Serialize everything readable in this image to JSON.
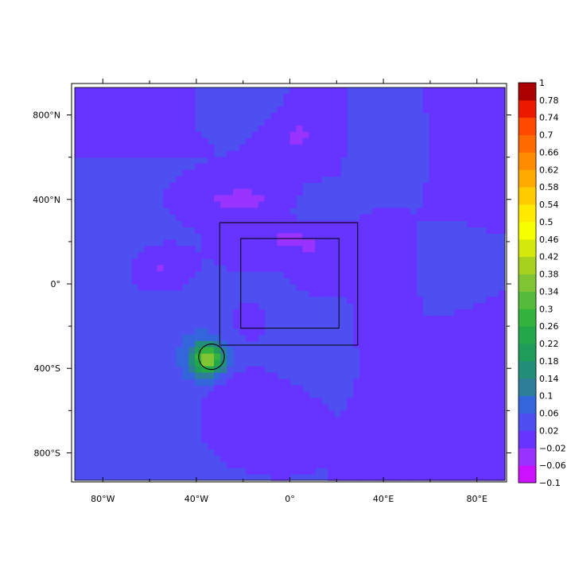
{
  "chart_data": {
    "type": "heatmap",
    "title": "",
    "xlabel": "",
    "ylabel": "",
    "xlim": [
      -92,
      92
    ],
    "ylim": [
      -930,
      930
    ],
    "x_ticks": [
      {
        "value": -80,
        "label": "80°W"
      },
      {
        "value": -40,
        "label": "40°W"
      },
      {
        "value": 0,
        "label": "0°"
      },
      {
        "value": 40,
        "label": "40°E"
      },
      {
        "value": 80,
        "label": "80°E"
      }
    ],
    "y_ticks": [
      {
        "value": 800,
        "label": "800°N"
      },
      {
        "value": 400,
        "label": "400°N"
      },
      {
        "value": 0,
        "label": "0°"
      },
      {
        "value": -400,
        "label": "400°S"
      },
      {
        "value": -800,
        "label": "800°S"
      }
    ],
    "background_value": 0.02,
    "features": [
      {
        "x": -72,
        "y": 380,
        "sx": 14,
        "sy": 150,
        "amp": 0.035
      },
      {
        "x": -73,
        "y": 770,
        "sx": 14,
        "sy": 120,
        "amp": -0.03
      },
      {
        "x": -35,
        "y": -355,
        "sx": 4.5,
        "sy": 50,
        "amp": 0.32
      },
      {
        "x": -38,
        "y": -350,
        "sx": 10,
        "sy": 140,
        "amp": 0.04
      },
      {
        "x": -20,
        "y": 400,
        "sx": 12,
        "sy": 55,
        "amp": -0.05
      },
      {
        "x": -45,
        "y": 400,
        "sx": 10,
        "sy": 60,
        "amp": -0.025
      },
      {
        "x": 0,
        "y": 210,
        "sx": 13,
        "sy": 60,
        "amp": -0.045
      },
      {
        "x": 10,
        "y": 80,
        "sx": 5,
        "sy": 70,
        "amp": -0.03
      },
      {
        "x": 3,
        "y": 700,
        "sx": 8,
        "sy": 80,
        "amp": -0.045
      },
      {
        "x": -15,
        "y": -180,
        "sx": 5,
        "sy": 55,
        "amp": -0.05
      },
      {
        "x": -25,
        "y": -550,
        "sx": 8,
        "sy": 80,
        "amp": -0.045
      },
      {
        "x": -55,
        "y": 80,
        "sx": 6,
        "sy": 60,
        "amp": -0.045
      },
      {
        "x": -5,
        "y": -170,
        "sx": 9,
        "sy": 90,
        "amp": 0.035
      },
      {
        "x": 43,
        "y": 60,
        "sx": 5,
        "sy": 130,
        "amp": -0.04
      },
      {
        "x": 45,
        "y": 620,
        "sx": 8,
        "sy": 110,
        "amp": 0.04
      },
      {
        "x": 10,
        "y": 350,
        "sx": 8,
        "sy": 60,
        "amp": 0.02
      },
      {
        "x": 80,
        "y": -600,
        "sx": 10,
        "sy": 200,
        "amp": -0.03
      },
      {
        "x": 75,
        "y": 600,
        "sx": 10,
        "sy": 150,
        "amp": -0.025
      },
      {
        "x": 70,
        "y": 100,
        "sx": 8,
        "sy": 100,
        "amp": 0.02
      },
      {
        "x": -60,
        "y": -300,
        "sx": 15,
        "sy": 150,
        "amp": 0.02
      },
      {
        "x": -20,
        "y": 820,
        "sx": 10,
        "sy": 60,
        "amp": 0.025
      }
    ],
    "contours": [
      {
        "level": 0.3,
        "shape": "ellipse",
        "cx": -33.5,
        "cy": -345,
        "rx": 5.5,
        "ry": 60,
        "rotation": -30
      }
    ],
    "boxes": [
      {
        "name": "outer",
        "x0": -30,
        "x1": 29,
        "y0": -290,
        "y1": 290
      },
      {
        "name": "inner",
        "x0": -21,
        "x1": 21,
        "y0": -210,
        "y1": 215
      }
    ],
    "colorbar": {
      "labels": [
        "1",
        "0.78",
        "0.74",
        "0.7",
        "0.66",
        "0.62",
        "0.58",
        "0.54",
        "0.5",
        "0.46",
        "0.42",
        "0.38",
        "0.34",
        "0.3",
        "0.26",
        "0.22",
        "0.18",
        "0.14",
        "0.1",
        "0.06",
        "0.02",
        "−0.02",
        "−0.06",
        "−0.1"
      ],
      "levels": [
        -0.1,
        -0.06,
        -0.02,
        0.02,
        0.06,
        0.1,
        0.14,
        0.18,
        0.22,
        0.26,
        0.3,
        0.34,
        0.38,
        0.42,
        0.46,
        0.5,
        0.54,
        0.58,
        0.62,
        0.66,
        0.7,
        0.74,
        0.78,
        1
      ],
      "colors": [
        "#cc11ff",
        "#9933ff",
        "#6633ff",
        "#4e4ff0",
        "#3366dd",
        "#2e7d99",
        "#238f7a",
        "#1f9b5a",
        "#22a84a",
        "#33b33e",
        "#55bb3a",
        "#7fc433",
        "#a6d11f",
        "#d4e80c",
        "#f5ff00",
        "#ffea00",
        "#ffcc00",
        "#ffaa00",
        "#ff8c00",
        "#ff6a00",
        "#ff4a00",
        "#ee1a00",
        "#aa0000"
      ]
    }
  }
}
